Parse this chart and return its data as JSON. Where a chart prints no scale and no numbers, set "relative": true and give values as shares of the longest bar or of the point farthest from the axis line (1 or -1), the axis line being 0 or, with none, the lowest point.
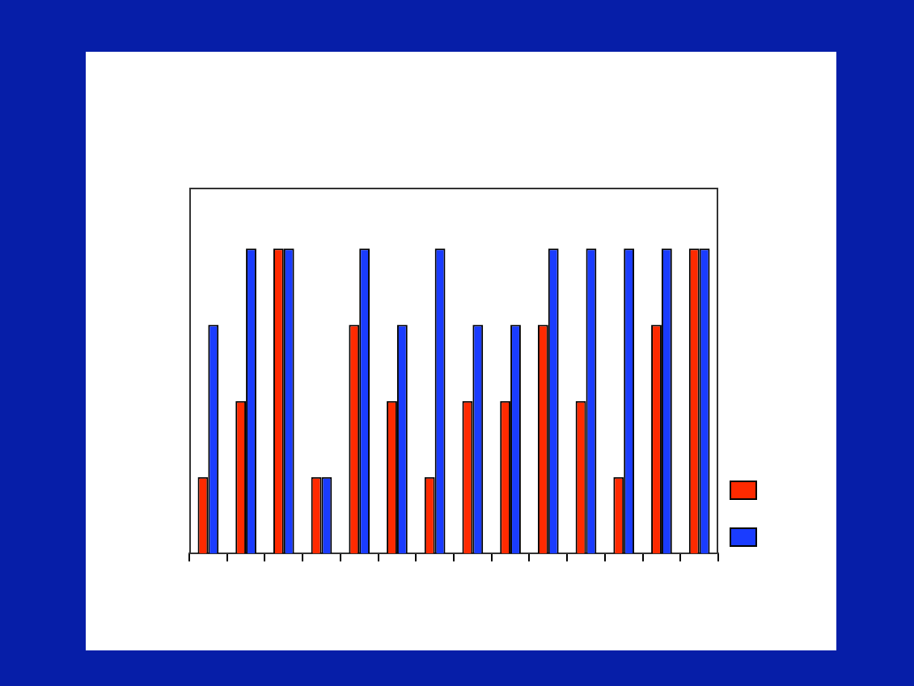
{
  "chart_data": {
    "type": "bar",
    "relative": true,
    "categories": [
      null,
      null,
      null,
      null,
      null,
      null,
      null,
      null,
      null,
      null,
      null,
      null,
      null,
      null
    ],
    "series": [
      {
        "color": "#ff2a00",
        "values": [
          0.25,
          0.5,
          1,
          0.25,
          0.75,
          0.5,
          0.25,
          0.5,
          0.5,
          0.75,
          0.5,
          0.25,
          0.75,
          1
        ]
      },
      {
        "color": "#1a3cff",
        "values": [
          0.75,
          1,
          1,
          0.25,
          1,
          0.75,
          1,
          0.75,
          0.75,
          1,
          1,
          1,
          1,
          1
        ]
      }
    ],
    "grid": false
  }
}
